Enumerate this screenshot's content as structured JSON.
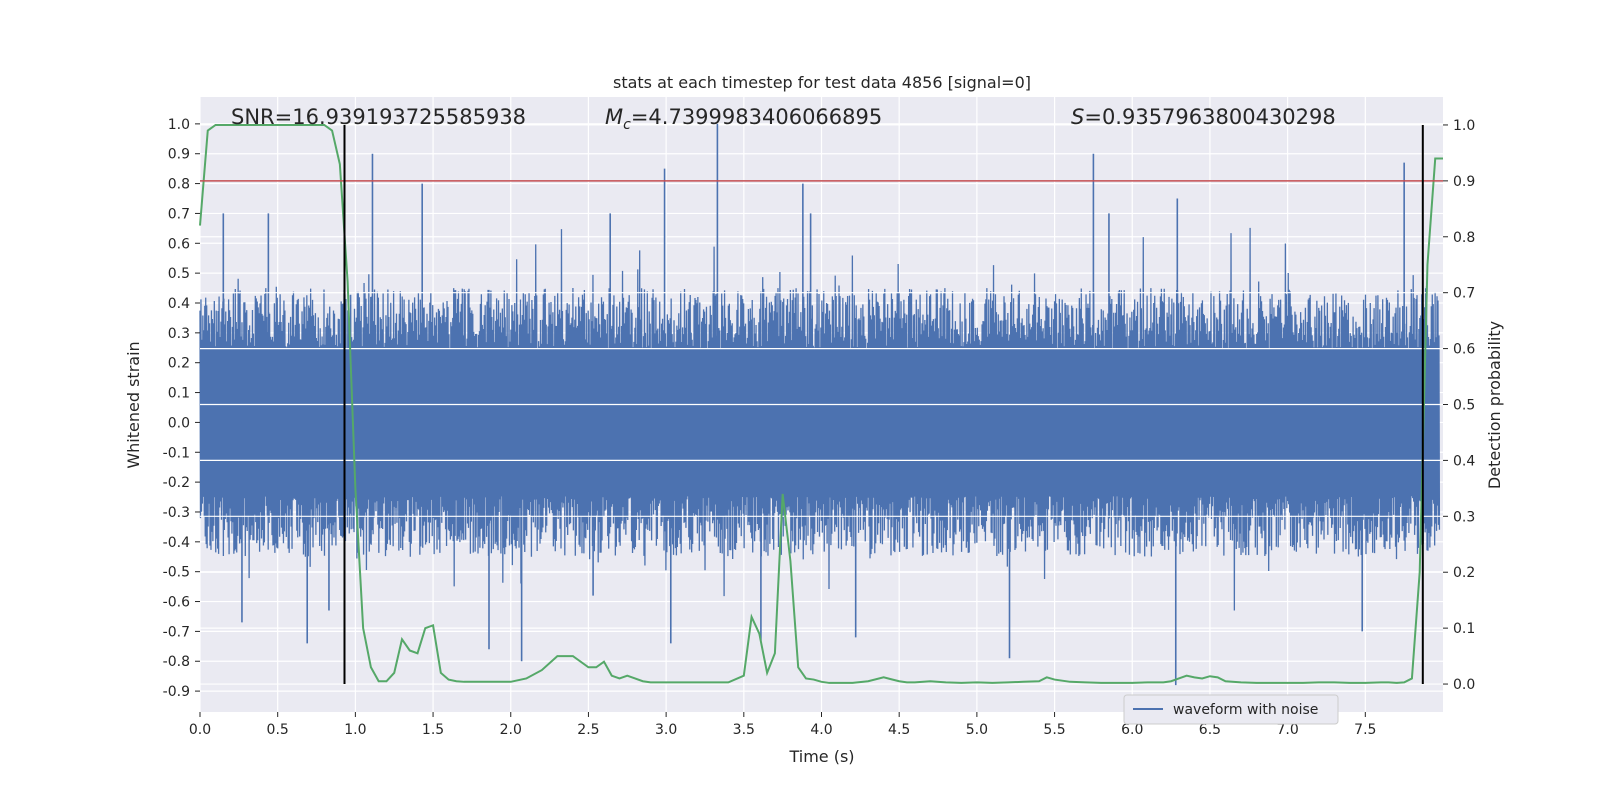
{
  "chart_data": {
    "type": "line",
    "title": "stats at each timestep for test data 4856 [signal=0]",
    "xlabel": "Time (s)",
    "ylabel": "Whitened strain",
    "y2label": "Detection probability",
    "xlim": [
      0.0,
      8.0
    ],
    "ylim": [
      -0.97,
      1.09
    ],
    "y2lim": [
      -0.05,
      1.05
    ],
    "xticks": [
      "0.0",
      "0.5",
      "1.0",
      "1.5",
      "2.0",
      "2.5",
      "3.0",
      "3.5",
      "4.0",
      "4.5",
      "5.0",
      "5.5",
      "6.0",
      "6.5",
      "7.0",
      "7.5"
    ],
    "yticks": [
      "1.0",
      "0.9",
      "0.8",
      "0.7",
      "0.6",
      "0.5",
      "0.4",
      "0.3",
      "0.2",
      "0.1",
      "0.0",
      "-0.1",
      "-0.2",
      "-0.3",
      "-0.4",
      "-0.5",
      "-0.6",
      "-0.7",
      "-0.8",
      "-0.9"
    ],
    "y2ticks": [
      "1.0",
      "0.9",
      "0.8",
      "0.7",
      "0.6",
      "0.5",
      "0.4",
      "0.3",
      "0.2",
      "0.1",
      "0.0"
    ],
    "grid": true,
    "legend_position": "bottom-right",
    "annotations": {
      "snr": "SNR=16.939193725585938",
      "mc_symbol": "M",
      "mc_subscript": "c",
      "mc_value": "=4.7399983406066895",
      "s_symbol": "S",
      "s_value": "=0.9357963800430298"
    },
    "series": [
      {
        "name": "waveform with noise",
        "axis": "left",
        "color": "#4c72b0",
        "envelope_typical": [
          -0.45,
          0.45
        ],
        "peaks": [
          [
            0.15,
            0.7
          ],
          [
            0.27,
            -0.67
          ],
          [
            0.44,
            0.7
          ],
          [
            0.69,
            -0.74
          ],
          [
            0.83,
            -0.63
          ],
          [
            1.11,
            0.9
          ],
          [
            1.43,
            0.8
          ],
          [
            1.86,
            -0.76
          ],
          [
            2.07,
            -0.8
          ],
          [
            2.53,
            -0.58
          ],
          [
            2.64,
            0.7
          ],
          [
            2.99,
            0.85
          ],
          [
            3.03,
            -0.74
          ],
          [
            3.33,
            1.0
          ],
          [
            3.61,
            -0.73
          ],
          [
            3.88,
            0.8
          ],
          [
            3.93,
            0.7
          ],
          [
            4.22,
            -0.72
          ],
          [
            5.21,
            -0.79
          ],
          [
            5.75,
            0.9
          ],
          [
            5.85,
            0.7
          ],
          [
            6.28,
            -0.88
          ],
          [
            6.29,
            0.75
          ],
          [
            7.48,
            -0.7
          ],
          [
            7.75,
            0.87
          ]
        ]
      },
      {
        "name": "detection probability",
        "axis": "right",
        "color": "#55a868",
        "x": [
          0.0,
          0.05,
          0.1,
          0.15,
          0.2,
          0.3,
          0.4,
          0.5,
          0.6,
          0.7,
          0.8,
          0.85,
          0.9,
          0.95,
          1.0,
          1.05,
          1.1,
          1.15,
          1.2,
          1.25,
          1.3,
          1.35,
          1.4,
          1.45,
          1.5,
          1.55,
          1.6,
          1.65,
          1.7,
          1.75,
          1.8,
          1.85,
          1.9,
          2.0,
          2.1,
          2.2,
          2.3,
          2.4,
          2.5,
          2.55,
          2.6,
          2.65,
          2.7,
          2.75,
          2.8,
          2.85,
          2.9,
          3.0,
          3.1,
          3.2,
          3.3,
          3.4,
          3.5,
          3.55,
          3.6,
          3.65,
          3.7,
          3.75,
          3.8,
          3.85,
          3.9,
          3.95,
          4.0,
          4.05,
          4.1,
          4.2,
          4.3,
          4.4,
          4.5,
          4.55,
          4.6,
          4.7,
          4.8,
          4.9,
          5.0,
          5.1,
          5.2,
          5.3,
          5.4,
          5.45,
          5.5,
          5.6,
          5.7,
          5.8,
          5.9,
          6.0,
          6.1,
          6.2,
          6.25,
          6.3,
          6.35,
          6.4,
          6.45,
          6.5,
          6.55,
          6.6,
          6.7,
          6.8,
          6.9,
          7.0,
          7.1,
          7.2,
          7.3,
          7.4,
          7.5,
          7.6,
          7.65,
          7.7,
          7.75,
          7.8,
          7.85,
          7.9,
          7.95,
          8.0
        ],
        "y": [
          0.82,
          0.99,
          1.0,
          1.0,
          1.0,
          1.0,
          1.0,
          1.0,
          1.0,
          1.0,
          1.0,
          0.99,
          0.93,
          0.72,
          0.35,
          0.1,
          0.03,
          0.005,
          0.005,
          0.02,
          0.08,
          0.06,
          0.055,
          0.1,
          0.105,
          0.02,
          0.008,
          0.005,
          0.004,
          0.004,
          0.004,
          0.004,
          0.004,
          0.004,
          0.01,
          0.025,
          0.05,
          0.05,
          0.03,
          0.03,
          0.04,
          0.015,
          0.01,
          0.015,
          0.01,
          0.005,
          0.003,
          0.003,
          0.003,
          0.003,
          0.003,
          0.003,
          0.015,
          0.12,
          0.09,
          0.02,
          0.055,
          0.34,
          0.22,
          0.03,
          0.01,
          0.008,
          0.004,
          0.002,
          0.002,
          0.002,
          0.005,
          0.012,
          0.005,
          0.003,
          0.003,
          0.005,
          0.003,
          0.002,
          0.003,
          0.002,
          0.003,
          0.004,
          0.005,
          0.012,
          0.008,
          0.004,
          0.003,
          0.002,
          0.002,
          0.002,
          0.003,
          0.003,
          0.005,
          0.01,
          0.015,
          0.012,
          0.01,
          0.014,
          0.012,
          0.005,
          0.003,
          0.002,
          0.002,
          0.002,
          0.002,
          0.003,
          0.003,
          0.002,
          0.002,
          0.003,
          0.003,
          0.002,
          0.003,
          0.01,
          0.2,
          0.75,
          0.94,
          0.94
        ]
      }
    ],
    "threshold_line": {
      "axis": "right",
      "value": 0.9,
      "color": "#c44e52"
    },
    "vertical_markers": {
      "x": [
        0.93,
        7.87
      ],
      "color": "#000000"
    }
  }
}
